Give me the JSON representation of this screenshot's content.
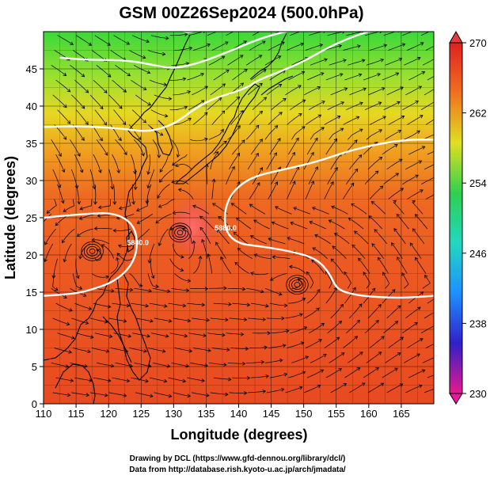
{
  "chart_data": {
    "type": "heatmap",
    "title": "GSM 00Z26Sep2024 (500.0hPa)",
    "xlabel": "Longitude (degrees)",
    "ylabel": "Latitude  (degrees)",
    "xlim": [
      110,
      170
    ],
    "ylim": [
      0,
      50
    ],
    "x_ticks": [
      "110",
      "115",
      "120",
      "125",
      "130",
      "135",
      "140",
      "145",
      "150",
      "155",
      "160",
      "165"
    ],
    "y_ticks": [
      "0",
      "5",
      "10",
      "15",
      "20",
      "25",
      "30",
      "35",
      "40",
      "45"
    ],
    "colorbar": {
      "min": 230,
      "max": 270,
      "ticks": [
        "270",
        "262",
        "254",
        "246",
        "238",
        "230"
      ],
      "colors": [
        "#e8188e",
        "#3020c8",
        "#1e90ff",
        "#20d8c0",
        "#30d050",
        "#e0e020",
        "#f07020",
        "#e02020"
      ]
    },
    "contours": [
      {
        "label": "5880.0",
        "points": [
          [
            110,
            14.5
          ],
          [
            115,
            14.8
          ],
          [
            118,
            15.5
          ],
          [
            121,
            16.5
          ],
          [
            123.5,
            18.5
          ],
          [
            124.5,
            21
          ],
          [
            124,
            24
          ],
          [
            121,
            25.7
          ],
          [
            116,
            25.5
          ],
          [
            110,
            25
          ]
        ]
      },
      {
        "label": "5880.0",
        "points": [
          [
            170,
            14.5
          ],
          [
            165,
            14.2
          ],
          [
            160,
            14.4
          ],
          [
            157,
            14.8
          ],
          [
            155,
            15.5
          ],
          [
            154,
            17.5
          ],
          [
            152,
            19.5
          ],
          [
            148,
            20.5
          ],
          [
            143,
            21.2
          ],
          [
            140,
            21.5
          ],
          [
            138,
            23
          ],
          [
            137.8,
            26
          ],
          [
            139,
            28.5
          ],
          [
            142,
            30.5
          ],
          [
            147,
            31.5
          ],
          [
            152,
            32.5
          ],
          [
            157,
            34
          ],
          [
            162,
            35
          ],
          [
            166,
            35.5
          ],
          [
            170,
            35.5
          ]
        ]
      },
      {
        "label": "",
        "points": [
          [
            110,
            37.2
          ],
          [
            116,
            37.3
          ],
          [
            122,
            37
          ],
          [
            126,
            36.5
          ],
          [
            130,
            37.5
          ],
          [
            133,
            39.5
          ],
          [
            136,
            41
          ],
          [
            141,
            42.3
          ],
          [
            143,
            43.5
          ],
          [
            146,
            44.5
          ],
          [
            150,
            46
          ],
          [
            154,
            48
          ],
          [
            158,
            49.5
          ],
          [
            162,
            50.5
          ],
          [
            170,
            51
          ]
        ]
      },
      {
        "label": "",
        "points": [
          [
            112.5,
            46.5
          ],
          [
            117,
            46.2
          ],
          [
            121,
            46.2
          ],
          [
            124,
            46
          ],
          [
            127,
            45.5
          ],
          [
            130,
            45
          ],
          [
            134,
            45.8
          ],
          [
            139,
            47.5
          ],
          [
            143,
            49
          ],
          [
            147,
            50
          ],
          [
            150,
            50.5
          ]
        ]
      },
      {
        "label": "",
        "points": [
          [
            131,
            50.3
          ],
          [
            132,
            49.8
          ],
          [
            134,
            50.3
          ]
        ]
      }
    ],
    "cyclones": [
      {
        "lon": 117.5,
        "lat": 20.5
      },
      {
        "lon": 149,
        "lat": 16
      },
      {
        "lon": 131,
        "lat": 23
      }
    ],
    "credits": [
      "Drawing by DCL (https://www.gfd-dennou.org/library/dcl/)",
      "Data from http://database.rish.kyoto-u.ac.jp/arch/jmadata/"
    ]
  }
}
